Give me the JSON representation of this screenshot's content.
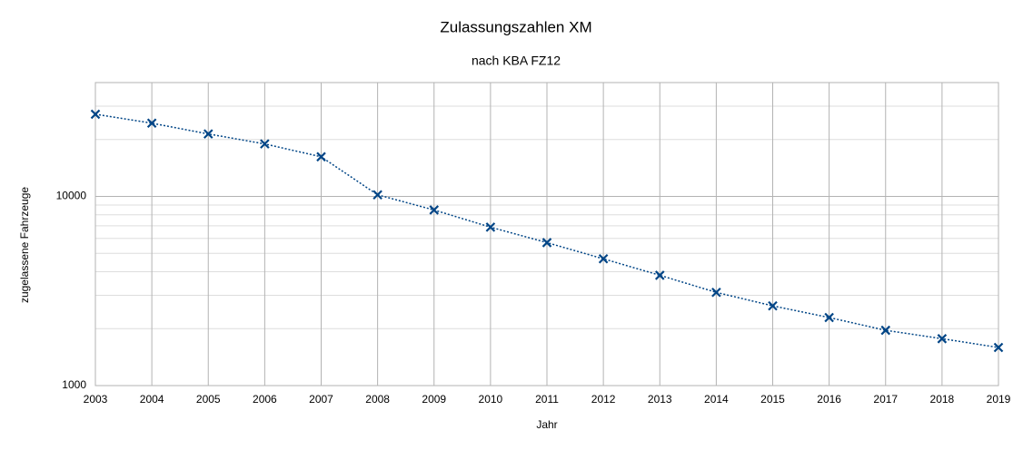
{
  "chart_data": {
    "type": "line",
    "title": "Zulassungszahlen XM",
    "subtitle": "nach KBA FZ12",
    "x_label": "Jahr",
    "y_label": "zugelassene Fahrzeuge",
    "x": [
      2003,
      2004,
      2005,
      2006,
      2007,
      2008,
      2009,
      2010,
      2011,
      2012,
      2013,
      2014,
      2015,
      2016,
      2017,
      2018,
      2019
    ],
    "series": [
      {
        "name": "XM",
        "color": "#004586",
        "values": [
          27200,
          24400,
          21400,
          18950,
          16200,
          10200,
          8480,
          6880,
          5700,
          4680,
          3830,
          3110,
          2640,
          2290,
          1960,
          1770,
          1590
        ]
      }
    ],
    "xlim": [
      2003,
      2019
    ],
    "xticks": [
      2003,
      2004,
      2005,
      2006,
      2007,
      2008,
      2009,
      2010,
      2011,
      2012,
      2013,
      2014,
      2015,
      2016,
      2017,
      2018,
      2019
    ],
    "ylim": [
      1000,
      40000
    ],
    "yticks": [
      1000,
      10000
    ],
    "yminorticks": [
      2000,
      3000,
      4000,
      5000,
      6000,
      7000,
      8000,
      9000,
      20000,
      30000
    ],
    "log_y": true,
    "grid": true,
    "legend": false
  }
}
